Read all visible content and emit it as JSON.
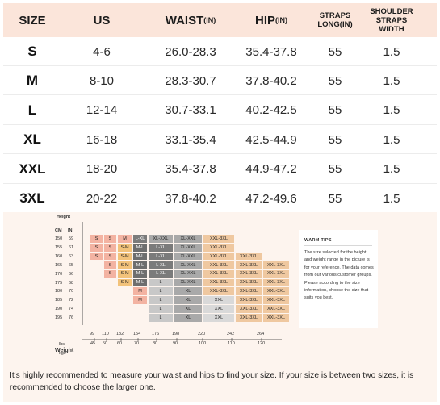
{
  "table": {
    "headers": {
      "size": "SIZE",
      "us": "US",
      "waist": "WAIST",
      "waist_unit": "(IN)",
      "hip": "HIP",
      "hip_unit": "(IN)",
      "straps": "STRAPS LONG(IN)",
      "shoulder": "SHOULDER STRAPS WIDTH"
    },
    "rows": [
      {
        "size": "S",
        "us": "4-6",
        "waist": "26.0-28.3",
        "hip": "35.4-37.8",
        "straps": "55",
        "width": "1.5"
      },
      {
        "size": "M",
        "us": "8-10",
        "waist": "28.3-30.7",
        "hip": "37.8-40.2",
        "straps": "55",
        "width": "1.5"
      },
      {
        "size": "L",
        "us": "12-14",
        "waist": "30.7-33.1",
        "hip": "40.2-42.5",
        "straps": "55",
        "width": "1.5"
      },
      {
        "size": "XL",
        "us": "16-18",
        "waist": "33.1-35.4",
        "hip": "42.5-44.9",
        "straps": "55",
        "width": "1.5"
      },
      {
        "size": "XXL",
        "us": "18-20",
        "waist": "35.4-37.8",
        "hip": "44.9-47.2",
        "straps": "55",
        "width": "1.5"
      },
      {
        "size": "3XL",
        "us": "20-22",
        "waist": "37.8-40.2",
        "hip": "47.2-49.6",
        "straps": "55",
        "width": "1.5"
      }
    ]
  },
  "chart": {
    "height_label": "Height",
    "cm_label": "CM",
    "in_label": "IN",
    "weight_label": "Weight",
    "lbs_label": "lbs",
    "kgs_label": "kgs",
    "height_rows": [
      {
        "cm": "150",
        "in": "59"
      },
      {
        "cm": "155",
        "in": "61"
      },
      {
        "cm": "160",
        "in": "63"
      },
      {
        "cm": "165",
        "in": "65"
      },
      {
        "cm": "170",
        "in": "66"
      },
      {
        "cm": "175",
        "in": "68"
      },
      {
        "cm": "180",
        "in": "70"
      },
      {
        "cm": "185",
        "in": "72"
      },
      {
        "cm": "190",
        "in": "74"
      },
      {
        "cm": "195",
        "in": "76"
      }
    ],
    "weight_ticks": [
      {
        "lbs": "99",
        "kgs": "45"
      },
      {
        "lbs": "110",
        "kgs": "50"
      },
      {
        "lbs": "132",
        "kgs": "60"
      },
      {
        "lbs": "154",
        "kgs": "70"
      },
      {
        "lbs": "176",
        "kgs": "80"
      },
      {
        "lbs": "198",
        "kgs": "90"
      },
      {
        "lbs": "220",
        "kgs": "100"
      },
      {
        "lbs": "242",
        "kgs": "110"
      },
      {
        "lbs": "264",
        "kgs": "120"
      }
    ],
    "grid": [
      [
        "S",
        "S",
        "M",
        "L-XL",
        "XL-XXL",
        "XL-XXL",
        "XXL-3XL",
        "",
        ""
      ],
      [
        "S",
        "S",
        "S-M",
        "M-L",
        "L-XL",
        "XL-XXL",
        "XXL-3XL",
        "",
        ""
      ],
      [
        "S",
        "S",
        "S-M",
        "M-L",
        "L-XL",
        "XL-XXL",
        "XXL-3XL",
        "XXL-3XL",
        ""
      ],
      [
        "",
        "S",
        "S-M",
        "M-L",
        "L-XL",
        "XL-XXL",
        "XXL-3XL",
        "XXL-3XL",
        "XXL-3XL"
      ],
      [
        "",
        "S",
        "S-M",
        "M-L",
        "L-XL",
        "XL-XXL",
        "XXL-3XL",
        "XXL-3XL",
        "XXL-3XL"
      ],
      [
        "",
        "",
        "S-M",
        "M-L",
        "L",
        "XL-XXL",
        "XXL-3XL",
        "XXL-3XL",
        "XXL-3XL"
      ],
      [
        "",
        "",
        "",
        "M",
        "L",
        "XL",
        "XXL-3XL",
        "XXL-3XL",
        "XXL-3XL"
      ],
      [
        "",
        "",
        "",
        "M",
        "L",
        "XL",
        "XXL",
        "XXL-3XL",
        "XXL-3XL"
      ],
      [
        "",
        "",
        "",
        "",
        "L",
        "XL",
        "XXL",
        "XXL-3XL",
        "XXL-3XL"
      ],
      [
        "",
        "",
        "",
        "",
        "L",
        "XL",
        "XXL",
        "XXL-3XL",
        "XXL-3XL"
      ]
    ],
    "colors": {
      "S": "#f3b3a2",
      "S-M": "#f2c27a",
      "M": "#f3b3a2",
      "M-L": "#6e6e6e",
      "L-XL": "#7b7b7b",
      "L": "#c8c8c8",
      "XL-XXL": "#a9a9a9",
      "XL": "#a9a9a9",
      "XXL": "#d9d9d9",
      "XXL-3XL": "#efc8a0"
    }
  },
  "tips": {
    "title": "WARM TIPS",
    "body": "The size selected for the height and weight range in the picture is for your reference. The data comes from our various customer groups. Please according to the size information, choose the size that suits you best."
  },
  "note": "It's highly recommended to measure your waist and hips to find your size. If your size is between two sizes, it is recommended to choose the larger one."
}
